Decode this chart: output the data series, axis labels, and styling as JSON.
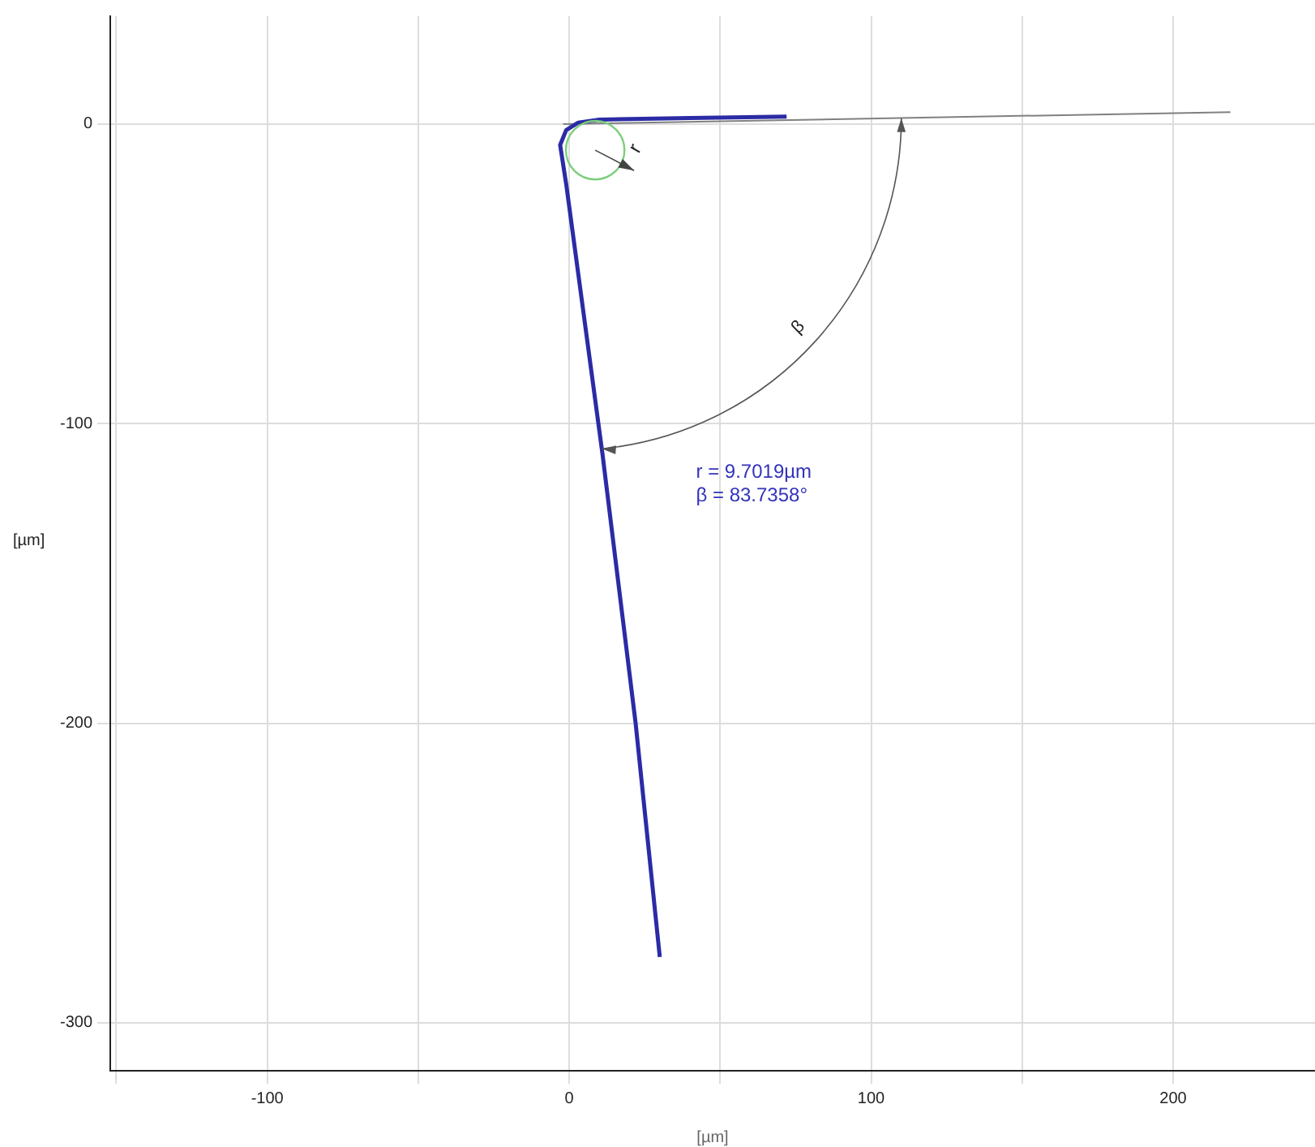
{
  "chart_data": {
    "type": "line",
    "xlabel": "[µm]",
    "ylabel": "[µm]",
    "series": [
      {
        "color": "#2b2ba6",
        "x": [
          72,
          40,
          10,
          3,
          -1,
          -3,
          -1,
          11,
          22,
          30
        ],
        "values": [
          2.5,
          2,
          1.5,
          0.5,
          -2,
          -7,
          -20,
          -110,
          -200,
          -278
        ]
      },
      {
        "color": "#808080",
        "x": [
          -2,
          219
        ],
        "values": [
          0,
          4
        ]
      }
    ],
    "xlim": [
      -152,
      247
    ],
    "xticks": [
      {
        "value": -150,
        "label": null
      },
      -100,
      {
        "value": -50,
        "label": null
      },
      0,
      {
        "value": 50,
        "label": null
      },
      100,
      {
        "value": 150,
        "label": null
      },
      200
    ],
    "ylim": [
      -316,
      36
    ],
    "yticks": [
      -300,
      -200,
      -100,
      0
    ],
    "grid": true,
    "marker": "none",
    "line_style": "solid",
    "annotations": [
      "r",
      "β",
      "r = 9.7019µm",
      "β = 83.7358°"
    ]
  }
}
